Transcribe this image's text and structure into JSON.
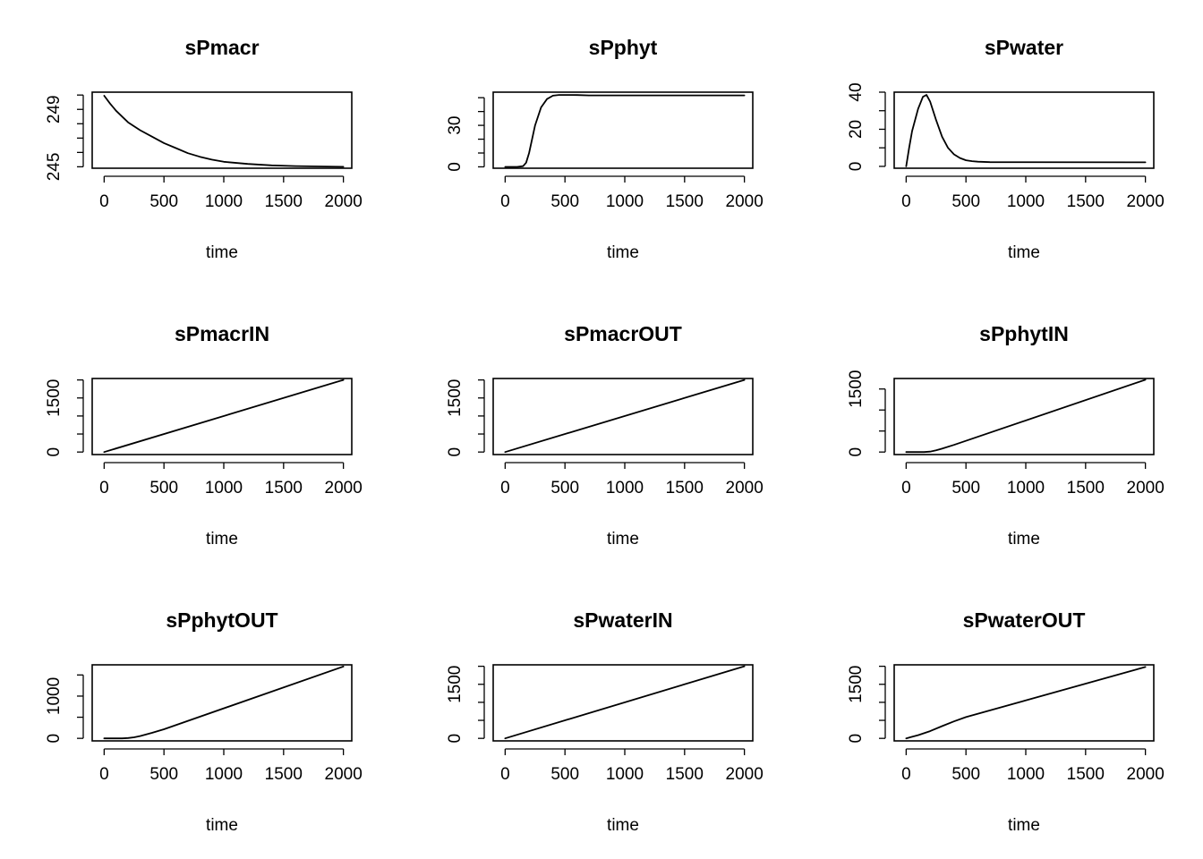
{
  "chart_data": [
    {
      "type": "line",
      "title": "sPmacr",
      "xlabel": "time",
      "ylabel": "",
      "xlim": [
        -100,
        2070
      ],
      "ylim": [
        244.9,
        250.2
      ],
      "xticks": [
        0,
        500,
        1000,
        1500,
        2000
      ],
      "xtick_labels": [
        "0",
        "500",
        "1000",
        "1500",
        "2000"
      ],
      "yticks": [
        245,
        246,
        247,
        248,
        249,
        250
      ],
      "ytick_labels": [
        "245",
        "",
        "",
        "",
        "249",
        ""
      ],
      "x": [
        0,
        50,
        100,
        200,
        300,
        400,
        500,
        600,
        700,
        800,
        900,
        1000,
        1200,
        1400,
        1600,
        2000
      ],
      "y": [
        249.95,
        249.4,
        248.9,
        248.1,
        247.55,
        247.1,
        246.65,
        246.3,
        245.95,
        245.7,
        245.5,
        245.35,
        245.2,
        245.1,
        245.05,
        245.0
      ]
    },
    {
      "type": "line",
      "title": "sPphyt",
      "xlabel": "time",
      "ylabel": "",
      "xlim": [
        -100,
        2070
      ],
      "ylim": [
        -1,
        54
      ],
      "xticks": [
        0,
        500,
        1000,
        1500,
        2000
      ],
      "xtick_labels": [
        "0",
        "500",
        "1000",
        "1500",
        "2000"
      ],
      "yticks": [
        0,
        10,
        20,
        30,
        40,
        50
      ],
      "ytick_labels": [
        "0",
        "",
        "",
        "30",
        "",
        ""
      ],
      "x": [
        0,
        100,
        150,
        175,
        200,
        250,
        300,
        350,
        400,
        450,
        500,
        600,
        700,
        2000
      ],
      "y": [
        0,
        0,
        0.5,
        3,
        10,
        30,
        43,
        49,
        51.5,
        52,
        52,
        51.9,
        51.7,
        51.7
      ]
    },
    {
      "type": "line",
      "title": "sPwater",
      "xlabel": "time",
      "ylabel": "",
      "xlim": [
        -100,
        2070
      ],
      "ylim": [
        -1,
        40
      ],
      "xticks": [
        0,
        500,
        1000,
        1500,
        2000
      ],
      "xtick_labels": [
        "0",
        "500",
        "1000",
        "1500",
        "2000"
      ],
      "yticks": [
        0,
        10,
        20,
        30,
        40
      ],
      "ytick_labels": [
        "0",
        "",
        "20",
        "",
        "40"
      ],
      "x": [
        0,
        25,
        50,
        100,
        140,
        170,
        200,
        250,
        300,
        350,
        400,
        450,
        500,
        550,
        600,
        700,
        2000
      ],
      "y": [
        0,
        10,
        19,
        31,
        37.5,
        38.5,
        35,
        25,
        16,
        10,
        6.5,
        4.5,
        3.3,
        2.8,
        2.5,
        2.3,
        2.2
      ]
    },
    {
      "type": "line",
      "title": "sPmacrIN",
      "xlabel": "time",
      "ylabel": "",
      "xlim": [
        -100,
        2070
      ],
      "ylim": [
        -70,
        2040
      ],
      "xticks": [
        0,
        500,
        1000,
        1500,
        2000
      ],
      "xtick_labels": [
        "0",
        "500",
        "1000",
        "1500",
        "2000"
      ],
      "yticks": [
        0,
        500,
        1000,
        1500,
        2000
      ],
      "ytick_labels": [
        "0",
        "",
        "",
        "1500",
        ""
      ],
      "x": [
        0,
        2000
      ],
      "y": [
        0,
        2000
      ]
    },
    {
      "type": "line",
      "title": "sPmacrOUT",
      "xlabel": "time",
      "ylabel": "",
      "xlim": [
        -100,
        2070
      ],
      "ylim": [
        -70,
        2040
      ],
      "xticks": [
        0,
        500,
        1000,
        1500,
        2000
      ],
      "xtick_labels": [
        "0",
        "500",
        "1000",
        "1500",
        "2000"
      ],
      "yticks": [
        0,
        500,
        1000,
        1500,
        2000
      ],
      "ytick_labels": [
        "0",
        "",
        "",
        "1500",
        ""
      ],
      "x": [
        0,
        2000
      ],
      "y": [
        0,
        2000
      ]
    },
    {
      "type": "line",
      "title": "sPphytIN",
      "xlabel": "time",
      "ylabel": "",
      "xlim": [
        -100,
        2070
      ],
      "ylim": [
        -60,
        1750
      ],
      "xticks": [
        0,
        500,
        1000,
        1500,
        2000
      ],
      "xtick_labels": [
        "0",
        "500",
        "1000",
        "1500",
        "2000"
      ],
      "yticks": [
        0,
        500,
        1000,
        1500
      ],
      "ytick_labels": [
        "0",
        "",
        "",
        "1500"
      ],
      "x": [
        0,
        150,
        200,
        250,
        300,
        400,
        2000
      ],
      "y": [
        0,
        0,
        10,
        40,
        80,
        170,
        1720
      ]
    },
    {
      "type": "line",
      "title": "sPphytOUT",
      "xlabel": "time",
      "ylabel": "",
      "xlim": [
        -100,
        2070
      ],
      "ylim": [
        -60,
        1740
      ],
      "xticks": [
        0,
        500,
        1000,
        1500,
        2000
      ],
      "xtick_labels": [
        "0",
        "500",
        "1000",
        "1500",
        "2000"
      ],
      "yticks": [
        0,
        500,
        1000,
        1500
      ],
      "ytick_labels": [
        "0",
        "",
        "1000",
        ""
      ],
      "x": [
        0,
        150,
        200,
        250,
        300,
        400,
        500,
        2000
      ],
      "y": [
        0,
        0,
        8,
        25,
        55,
        130,
        215,
        1700
      ]
    },
    {
      "type": "line",
      "title": "sPwaterIN",
      "xlabel": "time",
      "ylabel": "",
      "xlim": [
        -100,
        2070
      ],
      "ylim": [
        -70,
        2040
      ],
      "xticks": [
        0,
        500,
        1000,
        1500,
        2000
      ],
      "xtick_labels": [
        "0",
        "500",
        "1000",
        "1500",
        "2000"
      ],
      "yticks": [
        0,
        500,
        1000,
        1500,
        2000
      ],
      "ytick_labels": [
        "0",
        "",
        "",
        "1500",
        ""
      ],
      "x": [
        0,
        2000
      ],
      "y": [
        0,
        2000
      ]
    },
    {
      "type": "line",
      "title": "sPwaterOUT",
      "xlabel": "time",
      "ylabel": "",
      "xlim": [
        -100,
        2070
      ],
      "ylim": [
        -70,
        2040
      ],
      "xticks": [
        0,
        500,
        1000,
        1500,
        2000
      ],
      "xtick_labels": [
        "0",
        "500",
        "1000",
        "1500",
        "2000"
      ],
      "yticks": [
        0,
        500,
        1000,
        1500,
        2000
      ],
      "ytick_labels": [
        "0",
        "",
        "",
        "1500",
        ""
      ],
      "x": [
        0,
        100,
        200,
        300,
        400,
        500,
        2000
      ],
      "y": [
        0,
        90,
        200,
        340,
        470,
        590,
        1980
      ]
    }
  ]
}
